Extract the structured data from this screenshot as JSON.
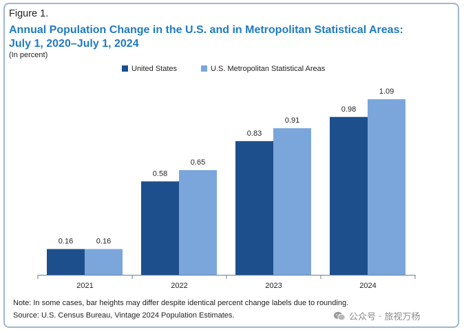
{
  "figure_label": "Figure 1.",
  "title_line_1": "Annual Population Change in the U.S. and in Metropolitan Statistical Areas:",
  "title_line_2": "July 1, 2020–July 1, 2024",
  "subtitle": "(In percent)",
  "note": "Note: In some cases, bar heights may differ despite identical percent change labels due to rounding.",
  "source": "Source: U.S. Census Bureau, Vintage 2024 Population Estimates.",
  "watermark": "公众号 · 旅视万杨",
  "watermark_icon": "wechat-icon",
  "colors": {
    "title": "#1f7bbf",
    "us": "#1d4f8c",
    "metro": "#7aa6db",
    "axis": "#6f7f90"
  },
  "chart_data": {
    "type": "bar",
    "title": "Annual Population Change in the U.S. and in Metropolitan Statistical Areas: July 1, 2020–July 1, 2024",
    "subtitle": "(In percent)",
    "categories": [
      "2021",
      "2022",
      "2023",
      "2024"
    ],
    "series": [
      {
        "name": "United States",
        "color": "#1d4f8c",
        "values": [
          0.16,
          0.58,
          0.83,
          0.98
        ],
        "labels": [
          "0.16",
          "0.58",
          "0.83",
          "0.98"
        ]
      },
      {
        "name": "U.S. Metropolitan Statistical Areas",
        "color": "#7aa6db",
        "values": [
          0.16,
          0.65,
          0.91,
          1.09
        ],
        "labels": [
          "0.16",
          "0.65",
          "0.91",
          "1.09"
        ]
      }
    ],
    "ylim": [
      0,
      1.2
    ],
    "grid": false,
    "legend": "top-center"
  }
}
